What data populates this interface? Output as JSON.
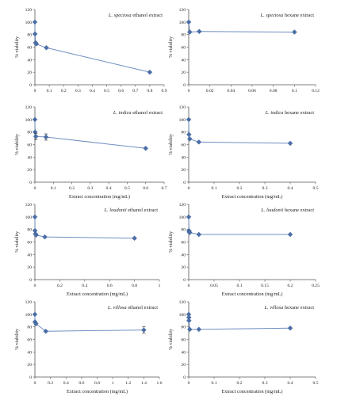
{
  "figure": {
    "marker_color": "#4a6fa8",
    "line_color": "#6f8fc2",
    "axis_color": "#555555"
  },
  "chart_data": [
    {
      "type": "line",
      "title_species": "L. speciosa",
      "title_rest": "ethanol extract",
      "xlabel": "",
      "ylabel": "% viability",
      "xlim": [
        0,
        0.9
      ],
      "xticks": [
        "0",
        "0.1",
        "0.2",
        "0.3",
        "0.4",
        "0.5",
        "0.6",
        "0.7",
        "0.8",
        "0.9"
      ],
      "ylim": [
        0,
        120
      ],
      "yticks": [
        "0",
        "20",
        "40",
        "60",
        "80",
        "100",
        "120"
      ],
      "x": [
        0,
        0.001,
        0.005,
        0.01,
        0.08,
        0.8
      ],
      "y": [
        100,
        81,
        67,
        65,
        59,
        20
      ],
      "errors": [
        0,
        0,
        0,
        0,
        0,
        0
      ]
    },
    {
      "type": "line",
      "title_species": "L. speciosa",
      "title_rest": "hexane extract",
      "xlabel": "",
      "ylabel": "% viability",
      "xlim": [
        0,
        0.12
      ],
      "xticks": [
        "0",
        "0.02",
        "0.04",
        "0.06",
        "0.08",
        "0.1",
        "0.12"
      ],
      "ylim": [
        0,
        120
      ],
      "yticks": [
        "0",
        "20",
        "40",
        "60",
        "80",
        "100",
        "120"
      ],
      "x": [
        0,
        0.001,
        0.01,
        0.1
      ],
      "y": [
        100,
        84,
        85,
        84
      ],
      "errors": [
        0,
        0,
        0,
        0
      ]
    },
    {
      "type": "line",
      "title_species": "L. indica",
      "title_rest": "ethanol extract",
      "xlabel": "Extract concentration (mg/mL)",
      "ylabel": "% viability",
      "xlim": [
        0,
        0.7
      ],
      "xticks": [
        "0",
        "0.1",
        "0.2",
        "0.3",
        "0.4",
        "0.5",
        "0.6",
        "0.7"
      ],
      "ylim": [
        0,
        120
      ],
      "yticks": [
        "0",
        "20",
        "40",
        "60",
        "80",
        "100",
        "120"
      ],
      "x": [
        0,
        0.001,
        0.005,
        0.06,
        0.6
      ],
      "y": [
        100,
        80,
        73,
        72,
        54
      ],
      "errors": [
        0,
        0,
        5,
        5,
        0
      ]
    },
    {
      "type": "line",
      "title_species": "L. indica",
      "title_rest": "hexane extract",
      "xlabel": "Extract concentration (mg/mL)",
      "ylabel": "% viability",
      "xlim": [
        0,
        0.5
      ],
      "xticks": [
        "0",
        "0.1",
        "0.2",
        "0.3",
        "0.4",
        "0.5"
      ],
      "ylim": [
        0,
        120
      ],
      "yticks": [
        "0",
        "20",
        "40",
        "60",
        "80",
        "100",
        "120"
      ],
      "x": [
        0,
        0.001,
        0.004,
        0.04,
        0.4
      ],
      "y": [
        100,
        76,
        69,
        64,
        62
      ],
      "errors": [
        0,
        0,
        0,
        0,
        0
      ]
    },
    {
      "type": "line",
      "title_species": "L. loudonii",
      "title_rest": "ethanol extract",
      "xlabel": "Extract concentration (mg/mL)",
      "ylabel": "% viability",
      "xlim": [
        0,
        1
      ],
      "xticks": [
        "0",
        "0.2",
        "0.4",
        "0.6",
        "0.8",
        "1"
      ],
      "ylim": [
        0,
        120
      ],
      "yticks": [
        "0",
        "20",
        "40",
        "60",
        "80",
        "100",
        "120"
      ],
      "x": [
        0,
        0.001,
        0.005,
        0.01,
        0.08,
        0.8
      ],
      "y": [
        100,
        78,
        73,
        71,
        68,
        66
      ],
      "errors": [
        0,
        0,
        0,
        0,
        0,
        0
      ]
    },
    {
      "type": "line",
      "title_species": "L. loudonii",
      "title_rest": "hexane extract",
      "xlabel": "Extract concentration (mg/mL)",
      "ylabel": "% viability",
      "xlim": [
        0,
        0.25
      ],
      "xticks": [
        "0",
        "0.05",
        "0.1",
        "0.15",
        "0.2",
        "0.25"
      ],
      "ylim": [
        0,
        120
      ],
      "yticks": [
        "0",
        "20",
        "40",
        "60",
        "80",
        "100",
        "120"
      ],
      "x": [
        0,
        0.0005,
        0.001,
        0.002,
        0.02,
        0.2
      ],
      "y": [
        100,
        78,
        76,
        75,
        72,
        72
      ],
      "errors": [
        0,
        0,
        0,
        0,
        0,
        0
      ]
    },
    {
      "type": "line",
      "title_species": "L. villosa",
      "title_rest": "ethanol extract",
      "xlabel": "Extract concentration (mg/mL)",
      "ylabel": "% viability",
      "xlim": [
        0,
        1.6
      ],
      "xticks": [
        "0",
        "0.2",
        "0.4",
        "0.6",
        "0.8",
        "1",
        "1.2",
        "1.4",
        "1.6"
      ],
      "ylim": [
        0,
        120
      ],
      "yticks": [
        "0",
        "20",
        "40",
        "60",
        "80",
        "100",
        "120"
      ],
      "x": [
        0,
        0.001,
        0.014,
        0.14,
        1.4
      ],
      "y": [
        100,
        88,
        85,
        73,
        75
      ],
      "errors": [
        0,
        0,
        0,
        0,
        5
      ]
    },
    {
      "type": "line",
      "title_species": "L. villosa",
      "title_rest": "hexane extract",
      "xlabel": "Extract concentration (mg/mL)",
      "ylabel": "% viability",
      "xlim": [
        0,
        0.5
      ],
      "xticks": [
        "0",
        "0.1",
        "0.2",
        "0.3",
        "0.4",
        "0.5"
      ],
      "ylim": [
        0,
        120
      ],
      "yticks": [
        "0",
        "20",
        "40",
        "60",
        "80",
        "100",
        "120"
      ],
      "x": [
        0,
        0.0005,
        0.001,
        0.004,
        0.04,
        0.4
      ],
      "y": [
        100,
        95,
        90,
        76,
        76,
        78
      ],
      "errors": [
        0,
        0,
        0,
        0,
        0,
        0
      ]
    }
  ]
}
